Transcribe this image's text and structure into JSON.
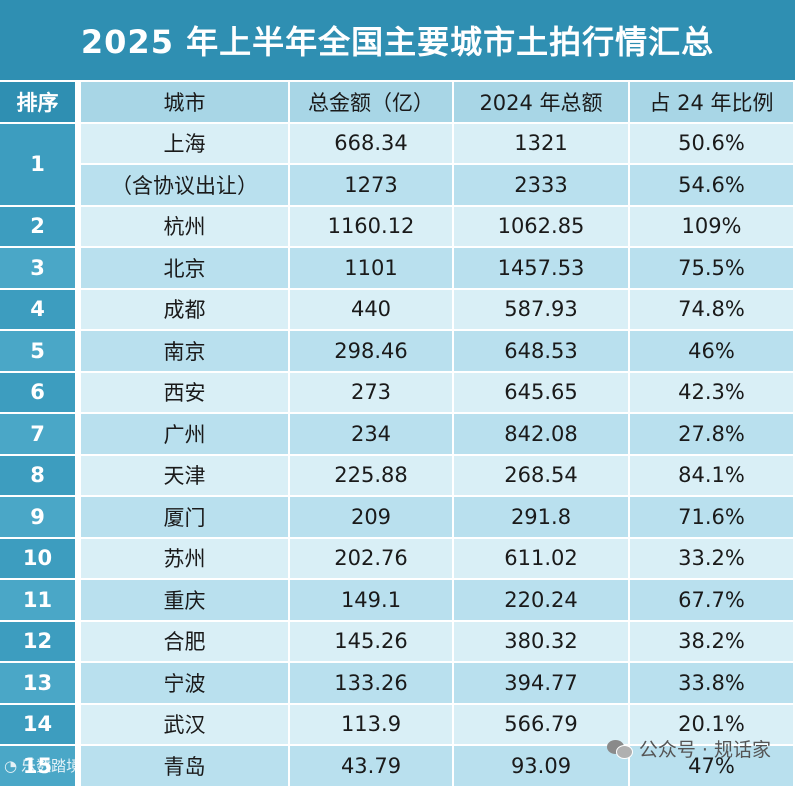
{
  "title": "2025 年上半年全国主要城市土拍行情汇总",
  "headers": {
    "rank": "排序",
    "city": "城市",
    "total": "总金额（亿）",
    "total2024": "2024 年总额",
    "ratio": "占 24 年比例"
  },
  "rows": [
    {
      "rank": "1",
      "city": "上海",
      "total": "668.34",
      "total2024": "1321",
      "ratio": "50.6%"
    },
    {
      "rank": "",
      "city": "（含协议出让）",
      "total": "1273",
      "total2024": "2333",
      "ratio": "54.6%"
    },
    {
      "rank": "2",
      "city": "杭州",
      "total": "1160.12",
      "total2024": "1062.85",
      "ratio": "109%"
    },
    {
      "rank": "3",
      "city": "北京",
      "total": "1101",
      "total2024": "1457.53",
      "ratio": "75.5%"
    },
    {
      "rank": "4",
      "city": "成都",
      "total": "440",
      "total2024": "587.93",
      "ratio": "74.8%"
    },
    {
      "rank": "5",
      "city": "南京",
      "total": "298.46",
      "total2024": "648.53",
      "ratio": "46%"
    },
    {
      "rank": "6",
      "city": "西安",
      "total": "273",
      "total2024": "645.65",
      "ratio": "42.3%"
    },
    {
      "rank": "7",
      "city": "广州",
      "total": "234",
      "total2024": "842.08",
      "ratio": "27.8%"
    },
    {
      "rank": "8",
      "city": "天津",
      "total": "225.88",
      "total2024": "268.54",
      "ratio": "84.1%"
    },
    {
      "rank": "9",
      "city": "厦门",
      "total": "209",
      "total2024": "291.8",
      "ratio": "71.6%"
    },
    {
      "rank": "10",
      "city": "苏州",
      "total": "202.76",
      "total2024": "611.02",
      "ratio": "33.2%"
    },
    {
      "rank": "11",
      "city": "重庆",
      "total": "149.1",
      "total2024": "220.24",
      "ratio": "67.7%"
    },
    {
      "rank": "12",
      "city": "合肥",
      "total": "145.26",
      "total2024": "380.32",
      "ratio": "38.2%"
    },
    {
      "rank": "13",
      "city": "宁波",
      "total": "133.26",
      "total2024": "394.77",
      "ratio": "33.8%"
    },
    {
      "rank": "14",
      "city": "武汉",
      "total": "113.9",
      "total2024": "566.79",
      "ratio": "20.1%"
    },
    {
      "rank": "15",
      "city": "青岛",
      "total": "43.79",
      "total2024": "93.09",
      "ratio": "47%"
    }
  ],
  "watermark_left": "乐数踏境",
  "watermark_right": "公众号 · 规话家",
  "icons": {
    "watermark_left": "logo-icon",
    "watermark_right": "wechat-icon"
  }
}
